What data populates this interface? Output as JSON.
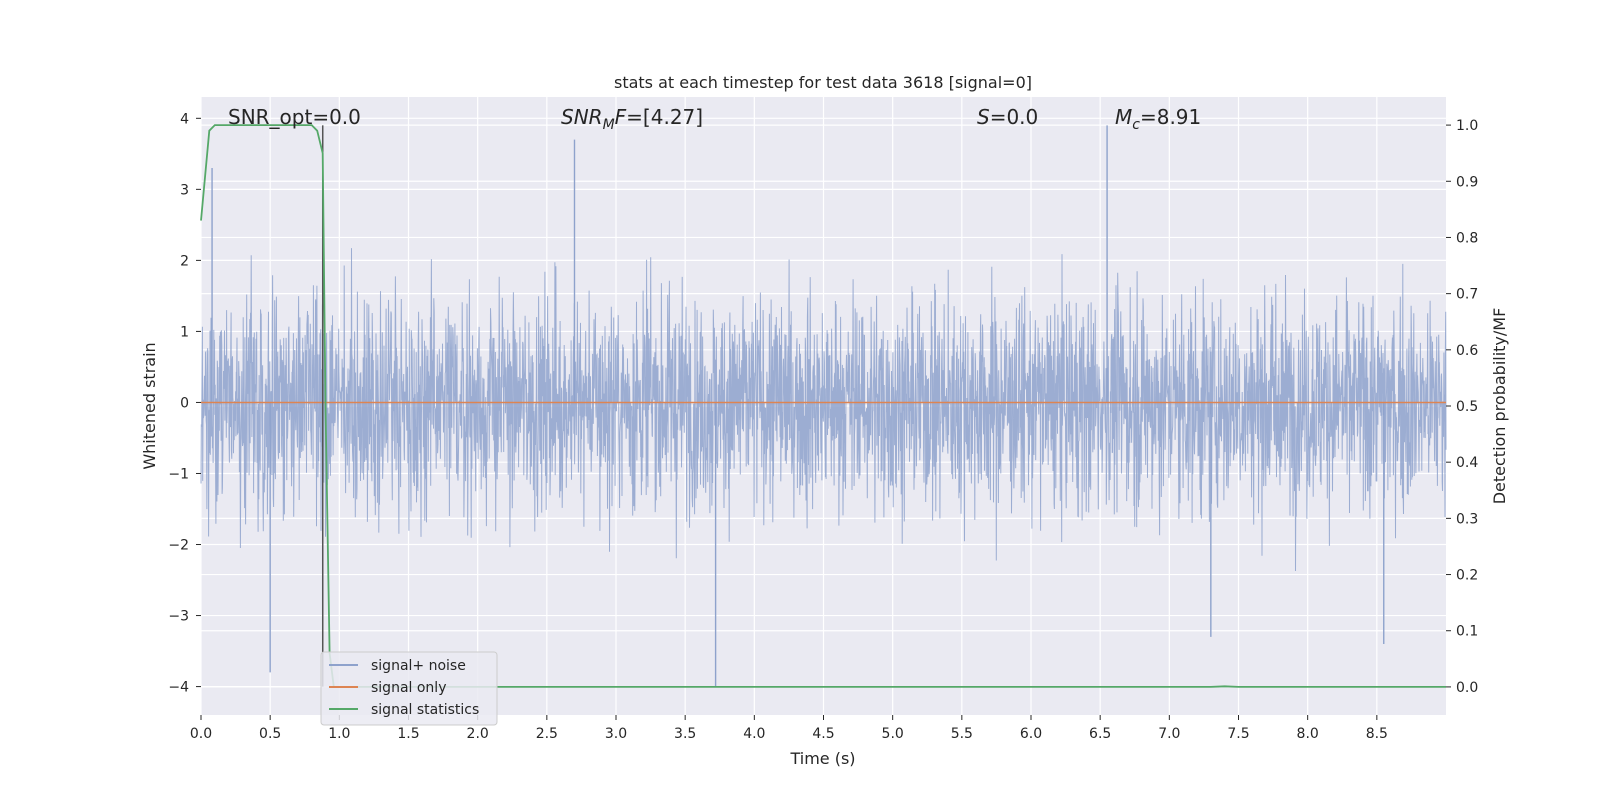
{
  "chart_data": {
    "type": "line",
    "title": "stats at each timestep for test data 3618 [signal=0]",
    "xlabel": "Time (s)",
    "ylabel_left": "Whitened strain",
    "ylabel_right": "Detection probability/MF",
    "xlim": [
      0.0,
      9.0
    ],
    "ylim_left": [
      -4.4,
      4.3
    ],
    "ylim_right": [
      -0.05,
      1.05
    ],
    "xticks": [
      "0.0",
      "0.5",
      "1.0",
      "1.5",
      "2.0",
      "2.5",
      "3.0",
      "3.5",
      "4.0",
      "4.5",
      "5.0",
      "5.5",
      "6.0",
      "6.5",
      "7.0",
      "7.5",
      "8.0",
      "8.5"
    ],
    "xtick_values": [
      0.0,
      0.5,
      1.0,
      1.5,
      2.0,
      2.5,
      3.0,
      3.5,
      4.0,
      4.5,
      5.0,
      5.5,
      6.0,
      6.5,
      7.0,
      7.5,
      8.0,
      8.5
    ],
    "yticks_left": [
      "4",
      "3",
      "2",
      "1",
      "0",
      "−1",
      "−2",
      "−3",
      "−4"
    ],
    "ytick_left_values": [
      4,
      3,
      2,
      1,
      0,
      -1,
      -2,
      -3,
      -4
    ],
    "yticks_right": [
      "1.0",
      "0.9",
      "0.8",
      "0.7",
      "0.6",
      "0.5",
      "0.4",
      "0.3",
      "0.2",
      "0.1",
      "0.0"
    ],
    "ytick_right_values": [
      1.0,
      0.9,
      0.8,
      0.7,
      0.6,
      0.5,
      0.4,
      0.3,
      0.2,
      0.1,
      0.0
    ],
    "grid": true,
    "legend_position": "lower-left",
    "annotations": {
      "snr_opt": "SNR_opt=0.0",
      "snr_mf_main": "SNR",
      "snr_mf_sub": "M",
      "snr_mf_rest": "F=[4.27]",
      "s_italic": "S",
      "s_rest": "=0.0",
      "mc_main": "M",
      "mc_sub": "c",
      "mc_rest": "=8.91"
    },
    "marker_line_x": 0.88,
    "series": [
      {
        "name": "signal+ noise",
        "color": "#8ea2cc",
        "description_axis": "left",
        "envelope": "noise with typical amplitude about ±1.5, peaks near ±3.9",
        "peaks_x": [
          0.08,
          0.5,
          0.88,
          2.7,
          3.72,
          6.55,
          7.3,
          8.55
        ],
        "peaks_y": [
          3.3,
          -3.8,
          3.9,
          3.7,
          -4.0,
          3.9,
          -3.3,
          -3.4
        ]
      },
      {
        "name": "signal only",
        "color": "#dd8452",
        "description_axis": "left",
        "x": [
          0.0,
          9.0
        ],
        "y": [
          0.0,
          0.0
        ]
      },
      {
        "name": "signal statistics",
        "color": "#55a868",
        "description_axis": "right",
        "x": [
          0.0,
          0.06,
          0.1,
          0.2,
          0.4,
          0.6,
          0.8,
          0.84,
          0.88,
          0.9,
          0.93,
          0.96,
          1.0,
          2.0,
          4.0,
          6.0,
          7.3,
          7.4,
          7.5,
          8.5,
          9.0
        ],
        "y": [
          0.83,
          0.99,
          1.0,
          1.0,
          1.0,
          1.0,
          1.0,
          0.99,
          0.95,
          0.5,
          0.06,
          0.0,
          0.0,
          0.0,
          0.0,
          0.0,
          0.0,
          0.001,
          0.0,
          0.0,
          0.0
        ]
      }
    ]
  }
}
